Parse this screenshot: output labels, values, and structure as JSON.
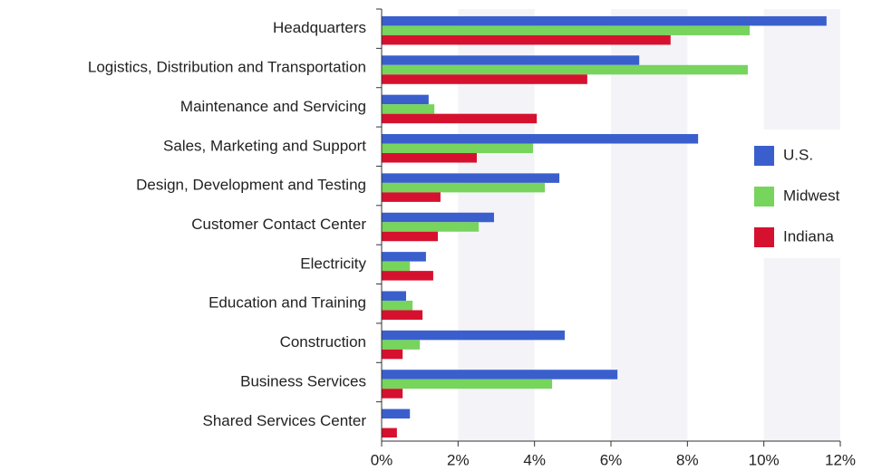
{
  "chart_data": {
    "type": "barh",
    "categories": [
      "Headquarters",
      "Logistics, Distribution and Transportation",
      "Maintenance and Servicing",
      "Sales, Marketing and Support",
      "Design, Development and Testing",
      "Customer Contact Center",
      "Electricity",
      "Education and Training",
      "Construction",
      "Business Services",
      "Shared Services Center"
    ],
    "series": [
      {
        "name": "U.S.",
        "color": "#3a5fcd",
        "values": [
          11.64,
          6.74,
          1.23,
          8.28,
          4.65,
          2.94,
          1.16,
          0.64,
          4.79,
          6.17,
          0.74
        ]
      },
      {
        "name": "Midwest",
        "color": "#77d45c",
        "values": [
          9.63,
          9.58,
          1.38,
          3.96,
          4.27,
          2.54,
          0.74,
          0.81,
          1.0,
          4.46,
          0
        ]
      },
      {
        "name": "Indiana",
        "color": "#d6112f",
        "values": [
          7.56,
          5.38,
          4.06,
          2.49,
          1.54,
          1.47,
          1.35,
          1.07,
          0.55,
          0.55,
          0.4
        ]
      }
    ],
    "xlim": [
      0,
      12
    ],
    "xticks": [
      {
        "value": 0,
        "label": "0%"
      },
      {
        "value": 2,
        "label": "2%"
      },
      {
        "value": 4,
        "label": "4%"
      },
      {
        "value": 6,
        "label": "6%"
      },
      {
        "value": 8,
        "label": "8%"
      },
      {
        "value": 10,
        "label": "10%"
      },
      {
        "value": 12,
        "label": "12%"
      }
    ],
    "legend": "right"
  }
}
